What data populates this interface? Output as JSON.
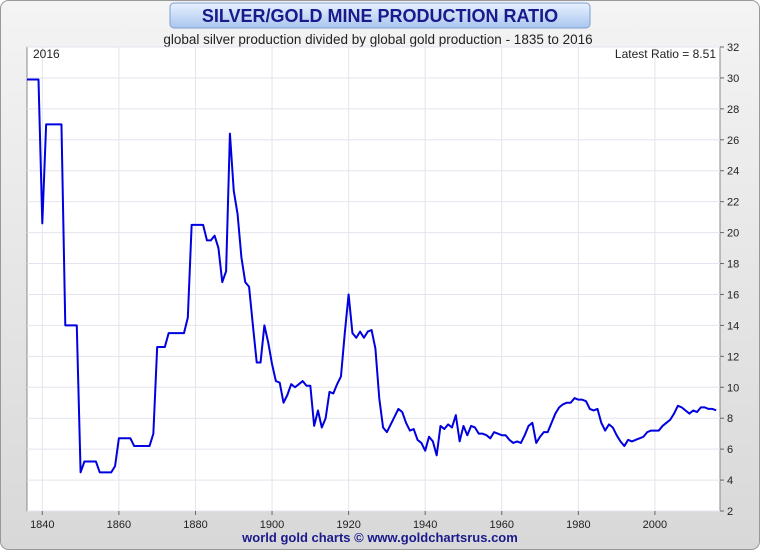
{
  "chart_data": {
    "type": "line",
    "title": "SILVER/GOLD MINE PRODUCTION RATIO",
    "subtitle": "global silver production divided by global gold production - 1835 to 2016",
    "corner_label": "2016",
    "latest_label": "Latest Ratio = 8.51",
    "footer": "world gold charts © www.goldchartsrus.com",
    "xlim": [
      1836,
      2017
    ],
    "xticks": [
      1840,
      1860,
      1880,
      1900,
      1920,
      1940,
      1960,
      1980,
      2000
    ],
    "ylim": [
      2,
      32
    ],
    "yticks": [
      2,
      4,
      6,
      8,
      10,
      12,
      14,
      16,
      18,
      20,
      22,
      24,
      26,
      28,
      30,
      32
    ],
    "grid": true,
    "series": [
      {
        "color": "#0000e0",
        "x": [
          1836,
          1839,
          1840,
          1841,
          1845,
          1846,
          1849,
          1850,
          1851,
          1854,
          1855,
          1858,
          1859,
          1860,
          1863,
          1864,
          1868,
          1869,
          1870,
          1872,
          1873,
          1877,
          1878,
          1879,
          1882,
          1883,
          1884,
          1885,
          1886,
          1887,
          1888,
          1889,
          1890,
          1891,
          1892,
          1893,
          1894,
          1895,
          1896,
          1897,
          1898,
          1899,
          1900,
          1901,
          1902,
          1903,
          1904,
          1905,
          1906,
          1907,
          1908,
          1909,
          1910,
          1911,
          1912,
          1913,
          1914,
          1915,
          1916,
          1917,
          1918,
          1919,
          1920,
          1921,
          1922,
          1923,
          1924,
          1925,
          1926,
          1927,
          1928,
          1929,
          1930,
          1931,
          1932,
          1933,
          1934,
          1935,
          1936,
          1937,
          1938,
          1939,
          1940,
          1941,
          1942,
          1943,
          1944,
          1945,
          1946,
          1947,
          1948,
          1949,
          1950,
          1951,
          1952,
          1953,
          1954,
          1955,
          1956,
          1957,
          1958,
          1959,
          1960,
          1961,
          1962,
          1963,
          1964,
          1965,
          1966,
          1967,
          1968,
          1969,
          1970,
          1971,
          1972,
          1973,
          1974,
          1975,
          1976,
          1977,
          1978,
          1979,
          1980,
          1981,
          1982,
          1983,
          1984,
          1985,
          1986,
          1987,
          1988,
          1989,
          1990,
          1991,
          1992,
          1993,
          1994,
          1995,
          1996,
          1997,
          1998,
          1999,
          2000,
          2001,
          2002,
          2003,
          2004,
          2005,
          2006,
          2007,
          2008,
          2009,
          2010,
          2011,
          2012,
          2013,
          2014,
          2015,
          2016
        ],
        "values": [
          29.9,
          29.9,
          20.6,
          27,
          27,
          14,
          14,
          4.5,
          5.2,
          5.2,
          4.5,
          4.5,
          4.9,
          6.7,
          6.7,
          6.2,
          6.2,
          7,
          12.6,
          12.6,
          13.5,
          13.5,
          14.5,
          20.5,
          20.5,
          19.5,
          19.5,
          19.8,
          19.0,
          16.8,
          17.5,
          26.4,
          22.7,
          21.2,
          18.4,
          16.8,
          16.5,
          14,
          11.6,
          11.6,
          14,
          12.9,
          11.5,
          10.4,
          10.3,
          9.0,
          9.5,
          10.2,
          10.0,
          10.2,
          10.4,
          10.1,
          10.1,
          7.5,
          8.5,
          7.4,
          8.0,
          9.7,
          9.6,
          10.2,
          10.7,
          13.5,
          16,
          13.5,
          13.2,
          13.6,
          13.2,
          13.6,
          13.7,
          12.5,
          9.3,
          7.4,
          7.1,
          7.6,
          8.1,
          8.6,
          8.4,
          7.7,
          7.2,
          7.3,
          6.6,
          6.4,
          5.9,
          6.8,
          6.5,
          5.6,
          7.5,
          7.3,
          7.6,
          7.4,
          8.2,
          6.5,
          7.5,
          6.9,
          7.5,
          7.4,
          7.0,
          7.0,
          6.9,
          6.7,
          7.1,
          7.0,
          6.9,
          6.9,
          6.6,
          6.4,
          6.5,
          6.4,
          6.9,
          7.5,
          7.7,
          6.4,
          6.8,
          7.1,
          7.1,
          7.7,
          8.3,
          8.7,
          8.9,
          9.0,
          9.0,
          9.3,
          9.2,
          9.2,
          9.1,
          8.6,
          8.5,
          8.6,
          7.7,
          7.2,
          7.6,
          7.4,
          6.9,
          6.5,
          6.2,
          6.6,
          6.5,
          6.6,
          6.7,
          6.8,
          7.1,
          7.2,
          7.2,
          7.2,
          7.5,
          7.7,
          7.9,
          8.3,
          8.8,
          8.7,
          8.5,
          8.3,
          8.5,
          8.4,
          8.7,
          8.7,
          8.6,
          8.6,
          8.51
        ]
      }
    ]
  }
}
